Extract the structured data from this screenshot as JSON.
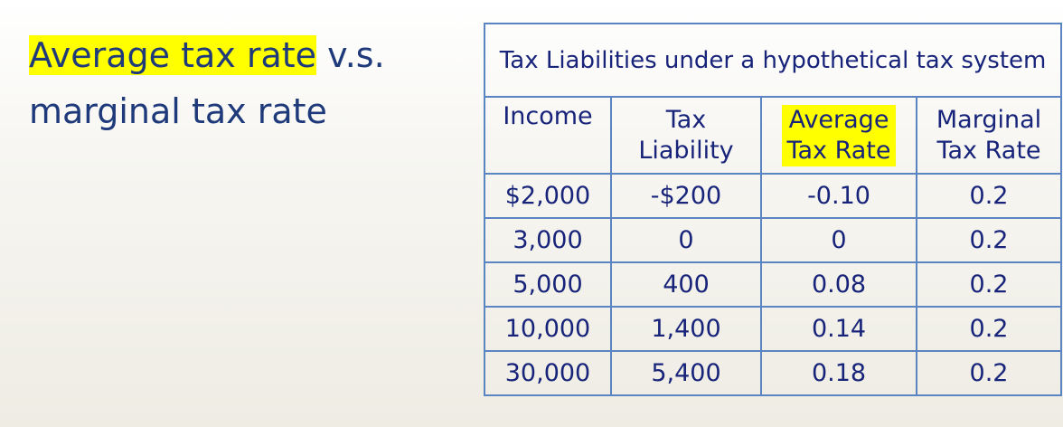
{
  "title": {
    "highlighted": "Average tax rate",
    "rest": " v.s. marginal tax rate"
  },
  "table": {
    "caption": "Tax Liabilities under a hypothetical tax system",
    "headers": [
      "Income",
      "Tax Liability",
      "Average Tax Rate",
      "Marginal Tax Rate"
    ],
    "rows": [
      [
        "$2,000",
        "-$200",
        "-0.10",
        "0.2"
      ],
      [
        "3,000",
        "0",
        "0",
        "0.2"
      ],
      [
        "5,000",
        "400",
        "0.08",
        "0.2"
      ],
      [
        "10,000",
        "1,400",
        "0.14",
        "0.2"
      ],
      [
        "30,000",
        "5,400",
        "0.18",
        "0.2"
      ]
    ]
  },
  "colors": {
    "text": "#17247a",
    "title": "#1f3a7a",
    "border": "#5b85c2",
    "highlight": "#ffff00"
  }
}
